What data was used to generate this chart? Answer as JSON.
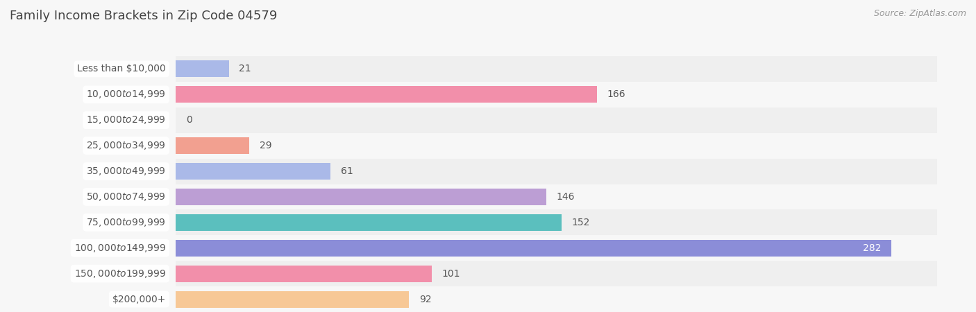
{
  "title": "Family Income Brackets in Zip Code 04579",
  "source": "Source: ZipAtlas.com",
  "categories": [
    "Less than $10,000",
    "$10,000 to $14,999",
    "$15,000 to $24,999",
    "$25,000 to $34,999",
    "$35,000 to $49,999",
    "$50,000 to $74,999",
    "$75,000 to $99,999",
    "$100,000 to $149,999",
    "$150,000 to $199,999",
    "$200,000+"
  ],
  "values": [
    21,
    166,
    0,
    29,
    61,
    146,
    152,
    282,
    101,
    92
  ],
  "bar_colors": [
    "#aab9e8",
    "#f28faa",
    "#f7c896",
    "#f2a090",
    "#aab9e8",
    "#bc9ed4",
    "#5bbfbe",
    "#8b8dd8",
    "#f28faa",
    "#f7c896"
  ],
  "background_color": "#f7f7f7",
  "row_bg_even": "#efefef",
  "row_bg_odd": "#f7f7f7",
  "xlim": [
    0,
    300
  ],
  "xticks": [
    0,
    150,
    300
  ],
  "title_fontsize": 13,
  "label_fontsize": 10,
  "value_fontsize": 10,
  "source_fontsize": 9,
  "title_color": "#444444",
  "label_color": "#555555",
  "value_color_default": "#555555",
  "value_color_inside": "#ffffff",
  "grid_color": "#cccccc"
}
